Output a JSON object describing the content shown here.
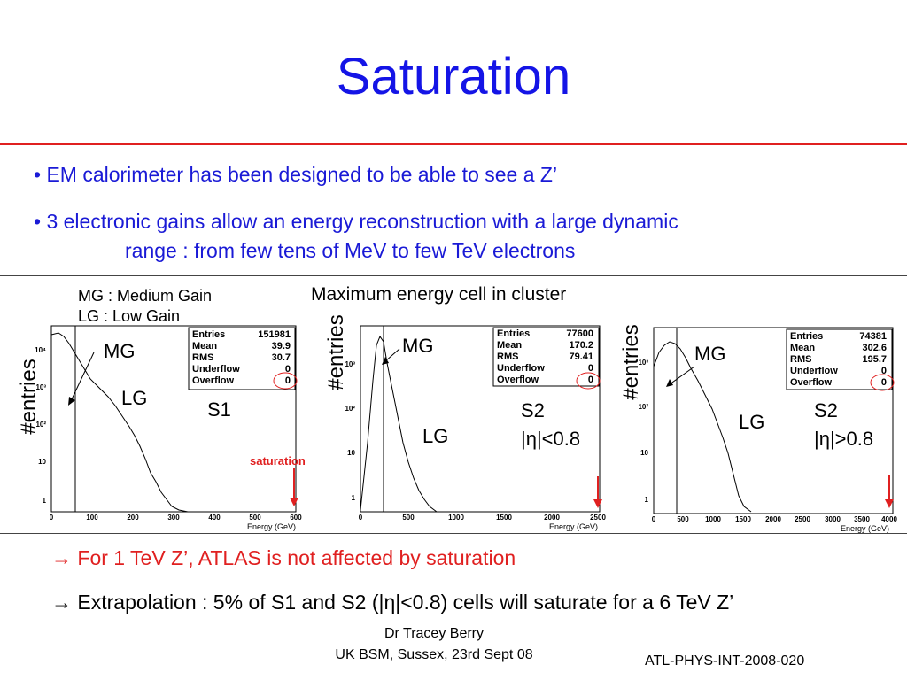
{
  "title": "Saturation",
  "bullets": [
    {
      "text": "• EM calorimeter has been designed to be able to see a Z’"
    },
    {
      "line1": "• 3 electronic gains allow an energy reconstruction with a large dynamic",
      "line2": "range : from few tens of MeV to few TeV electrons"
    }
  ],
  "legend": {
    "mg": "MG : Medium Gain",
    "lg": "LG : Low Gain"
  },
  "figure_caption": "Maximum energy cell in cluster",
  "saturation_label": "saturation",
  "plots": [
    {
      "ylabel": "#entries",
      "mg": "MG",
      "lg": "LG",
      "region": "S1",
      "region2": "",
      "stats": {
        "Entries": "151981",
        "Mean": "39.9",
        "RMS": "30.7",
        "Underflow": "0",
        "Overflow": "0"
      },
      "xticks": [
        "0",
        "100",
        "200",
        "300",
        "400",
        "500",
        "600"
      ],
      "xlabel": "Energy (GeV)",
      "yticks": [
        "1",
        "10",
        "10²",
        "10³",
        "10⁴"
      ]
    },
    {
      "ylabel": "#entries",
      "mg": "MG",
      "lg": "LG",
      "region": "S2",
      "region2": "|η|<0.8",
      "stats": {
        "Entries": "77600",
        "Mean": "170.2",
        "RMS": "79.41",
        "Underflow": "0",
        "Overflow": "0"
      },
      "xticks": [
        "0",
        "500",
        "1000",
        "1500",
        "2000",
        "2500"
      ],
      "xlabel": "Energy (GeV)",
      "yticks": [
        "1",
        "10",
        "10²",
        "10³"
      ]
    },
    {
      "ylabel": "#entries",
      "mg": "MG",
      "lg": "LG",
      "region": "S2",
      "region2": "|η|>0.8",
      "stats": {
        "Entries": "74381",
        "Mean": "302.6",
        "RMS": "195.7",
        "Underflow": "0",
        "Overflow": "0"
      },
      "xticks": [
        "0",
        "500",
        "1000",
        "1500",
        "2000",
        "2500",
        "3000",
        "3500",
        "4000"
      ],
      "xlabel": "Energy (GeV)",
      "yticks": [
        "1",
        "10",
        "10²",
        "10³"
      ]
    }
  ],
  "conclusions": [
    "→ For 1 TeV Z’, ATLAS is not affected by saturation",
    "→ Extrapolation : 5% of S1 and S2 (|η|<0.8) cells will saturate for a 6 TeV Z’"
  ],
  "footer": {
    "author": "Dr Tracey Berry",
    "event": "UK BSM, Sussex, 23rd Sept 08",
    "note": "ATL-PHYS-INT-2008-020"
  },
  "colors": {
    "title": "#1414e6",
    "accent": "#e02020",
    "text_blue": "#1a1ad6"
  },
  "chart_data": [
    {
      "type": "bar",
      "title": "",
      "xlabel": "Energy (GeV)",
      "ylabel": "#entries",
      "log_y": true,
      "xlim": [
        0,
        600
      ],
      "series": [
        {
          "values_approx_peak": 10000
        }
      ],
      "gain_boundary_GeV": 60,
      "saturation_GeV": 600
    },
    {
      "type": "bar",
      "title": "",
      "xlabel": "Energy (GeV)",
      "ylabel": "#entries",
      "log_y": true,
      "xlim": [
        0,
        2500
      ],
      "gain_boundary_GeV": 250,
      "saturation_GeV": 2500
    },
    {
      "type": "bar",
      "title": "",
      "xlabel": "Energy (GeV)",
      "ylabel": "#entries",
      "log_y": true,
      "xlim": [
        0,
        4000
      ],
      "gain_boundary_GeV": 400,
      "saturation_GeV": 4000
    }
  ]
}
